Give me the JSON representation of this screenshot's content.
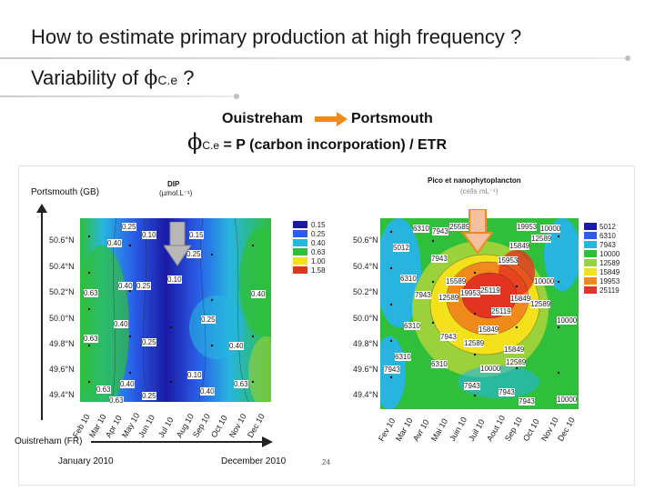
{
  "slide": {
    "title": "How to estimate primary production at high frequency ?",
    "subtitle_prefix": "Variability of ",
    "subtitle_symbol": "ϕ",
    "subtitle_sub": "C.e",
    "subtitle_suffix": " ?",
    "route_from": "Ouistreham",
    "route_to": "Portsmouth",
    "formula_symbol": "ϕ",
    "formula_sub": "C.e",
    "formula_text": " = P (carbon incorporation) / ETR",
    "page_number": "24"
  },
  "figure": {
    "label_portsmouth": "Portsmouth (GB)",
    "label_ouistreham": "Ouistreham (FR)",
    "date_start": "January 2010",
    "date_end": "December 2010",
    "latitudes": [
      "50.6°N",
      "50.4°N",
      "50.2°N",
      "50.0°N",
      "49.8°N",
      "49.6°N",
      "49.4°N"
    ],
    "months_left": [
      "Feb 10",
      "Mar 10",
      "Apr 10",
      "May 10",
      "Jun 10",
      "Jul 10",
      "Aug 10",
      "Sep 10",
      "Oct 10",
      "Nov 10",
      "Dec 10"
    ],
    "months_right": [
      "Fev 10",
      "Mar 10",
      "Avr 10",
      "Mai 10",
      "Juin 10",
      "Juil 10",
      "Aout 10",
      "Sep 10",
      "Oct 10",
      "Nov 10",
      "Dec 10"
    ],
    "dip": {
      "title": "DIP",
      "unit": "(µmol.L⁻¹)",
      "legend": [
        {
          "label": "0.15",
          "color": "#1a1aa6"
        },
        {
          "label": "0.25",
          "color": "#2a5ee8"
        },
        {
          "label": "0.40",
          "color": "#27b5e0"
        },
        {
          "label": "0.63",
          "color": "#2fbf3a"
        },
        {
          "label": "1.00",
          "color": "#f4e11c"
        },
        {
          "label": "1.58",
          "color": "#e53322"
        }
      ],
      "contour_labels": [
        "0.25",
        "0.10",
        "0.15",
        "0.25",
        "0.40",
        "0.63",
        "0.40",
        "0.25",
        "0.10",
        "0.40",
        "0.25",
        "0.63",
        "0.40",
        "0.25",
        "0.40",
        "0.40",
        "0.63",
        "0.10",
        "0.40",
        "0.63",
        "0.25",
        "0.63"
      ]
    },
    "pico": {
      "title": "Pico et nanophytoplancton",
      "unit": "(cells mL⁻¹)",
      "legend": [
        {
          "label": "5012",
          "color": "#1a1aa6"
        },
        {
          "label": "6310",
          "color": "#2a5ee8"
        },
        {
          "label": "7943",
          "color": "#27b5e0"
        },
        {
          "label": "10000",
          "color": "#2fbf3a"
        },
        {
          "label": "12589",
          "color": "#9bd13a"
        },
        {
          "label": "15849",
          "color": "#f4e11c"
        },
        {
          "label": "19953",
          "color": "#f08a1c"
        },
        {
          "label": "25119",
          "color": "#e53322"
        }
      ],
      "contour_labels": [
        "6310",
        "7943",
        "25589",
        "19953",
        "10000",
        "5012",
        "12589",
        "15849",
        "7943",
        "15953",
        "10000",
        "6310",
        "15589",
        "7943",
        "12589",
        "19953",
        "25119",
        "15849",
        "12589",
        "25119",
        "10000",
        "6310",
        "15849",
        "7943",
        "12589",
        "15849",
        "6310",
        "10000",
        "12589",
        "7943",
        "7943",
        "10000",
        "7943",
        "7943",
        "6310"
      ]
    }
  },
  "colors": {
    "title": "#1a1a1a",
    "arrow_orange": "#f08a1c",
    "arrow_grey": "#b8b8b8"
  }
}
